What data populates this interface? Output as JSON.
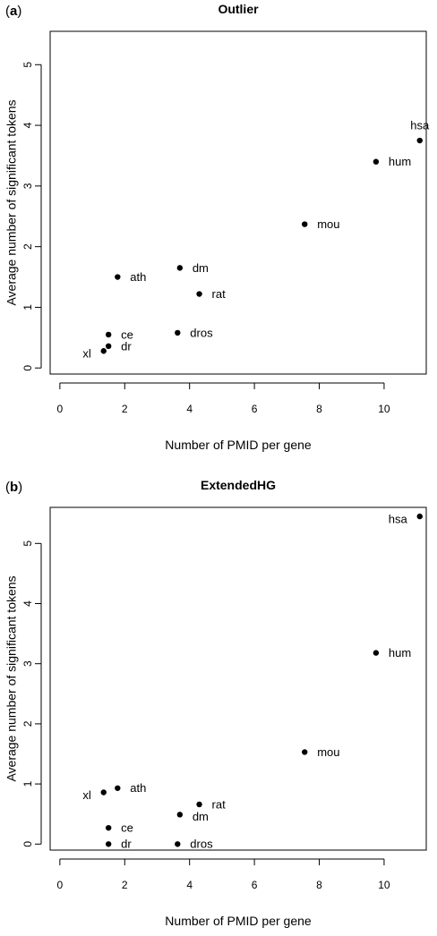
{
  "chart_data": [
    {
      "panel_label": "a",
      "type": "scatter",
      "title": "Outlier",
      "xlabel": "Number of PMID per gene",
      "ylabel": "Average number of significant tokens",
      "xlim": [
        -0.3,
        11.3
      ],
      "ylim": [
        -0.1,
        5.55
      ],
      "xticks": [
        0,
        2,
        4,
        6,
        8,
        10
      ],
      "yticks": [
        0,
        1,
        2,
        3,
        4,
        5
      ],
      "grid": false,
      "points": [
        {
          "label": "hsa",
          "x": 11.1,
          "y": 3.75,
          "label_pos": "above"
        },
        {
          "label": "hum",
          "x": 9.75,
          "y": 3.4,
          "label_pos": "right"
        },
        {
          "label": "mou",
          "x": 7.55,
          "y": 2.37,
          "label_pos": "right"
        },
        {
          "label": "dm",
          "x": 3.7,
          "y": 1.65,
          "label_pos": "right"
        },
        {
          "label": "ath",
          "x": 1.78,
          "y": 1.5,
          "label_pos": "right"
        },
        {
          "label": "rat",
          "x": 4.3,
          "y": 1.22,
          "label_pos": "right"
        },
        {
          "label": "dros",
          "x": 3.63,
          "y": 0.58,
          "label_pos": "right"
        },
        {
          "label": "ce",
          "x": 1.5,
          "y": 0.55,
          "label_pos": "right"
        },
        {
          "label": "dr",
          "x": 1.5,
          "y": 0.36,
          "label_pos": "right"
        },
        {
          "label": "xl",
          "x": 1.35,
          "y": 0.28,
          "label_pos": "left"
        }
      ]
    },
    {
      "panel_label": "b",
      "type": "scatter",
      "title": "ExtendedHG",
      "xlabel": "Number of PMID per gene",
      "ylabel": "Average number of significant tokens",
      "xlim": [
        -0.3,
        11.3
      ],
      "ylim": [
        -0.1,
        5.6
      ],
      "xticks": [
        0,
        2,
        4,
        6,
        8,
        10
      ],
      "yticks": [
        0,
        1,
        2,
        3,
        4,
        5
      ],
      "grid": false,
      "points": [
        {
          "label": "hsa",
          "x": 11.1,
          "y": 5.45,
          "label_pos": "left"
        },
        {
          "label": "hum",
          "x": 9.75,
          "y": 3.18,
          "label_pos": "right"
        },
        {
          "label": "mou",
          "x": 7.55,
          "y": 1.53,
          "label_pos": "right"
        },
        {
          "label": "ath",
          "x": 1.78,
          "y": 0.93,
          "label_pos": "right"
        },
        {
          "label": "xl",
          "x": 1.35,
          "y": 0.86,
          "label_pos": "left"
        },
        {
          "label": "rat",
          "x": 4.3,
          "y": 0.66,
          "label_pos": "right"
        },
        {
          "label": "dm",
          "x": 3.7,
          "y": 0.49,
          "label_pos": "right-below"
        },
        {
          "label": "ce",
          "x": 1.5,
          "y": 0.27,
          "label_pos": "right"
        },
        {
          "label": "dr",
          "x": 1.5,
          "y": 0.0,
          "label_pos": "right"
        },
        {
          "label": "dros",
          "x": 3.63,
          "y": 0.0,
          "label_pos": "right"
        }
      ]
    }
  ]
}
